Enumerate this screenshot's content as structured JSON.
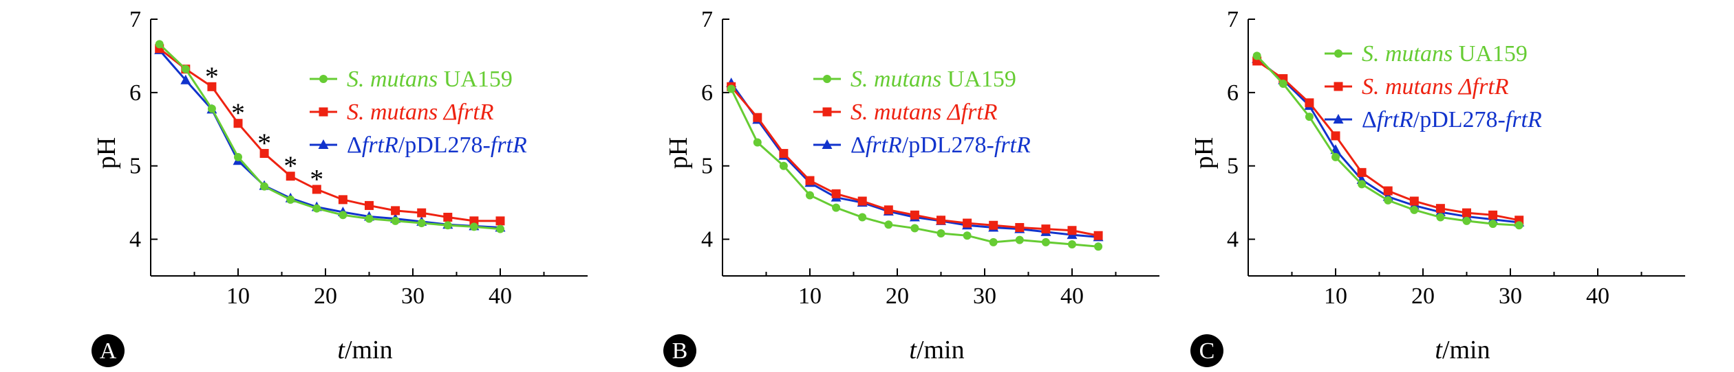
{
  "chart_data": [
    {
      "type": "line",
      "panel": "A",
      "xlabel_italic": "t",
      "xlabel_unit": "/min",
      "ylabel": "pH",
      "xlim": [
        0,
        50
      ],
      "ylim": [
        3.5,
        7
      ],
      "x_ticks": [
        "10",
        "20",
        "30",
        "40"
      ],
      "y_ticks": [
        "4",
        "5",
        "6",
        "7"
      ],
      "legend_position": "top-right",
      "series": [
        {
          "key": "ua159",
          "name_italic": "S. mutans",
          "name_rest": " UA159",
          "color": "#66cc33",
          "marker": "circle",
          "x": [
            1,
            4,
            7,
            10,
            13,
            16,
            19,
            22,
            25,
            28,
            31,
            34,
            37,
            40
          ],
          "y": [
            6.66,
            6.32,
            5.78,
            5.12,
            4.72,
            4.54,
            4.42,
            4.33,
            4.28,
            4.25,
            4.22,
            4.19,
            4.17,
            4.14
          ]
        },
        {
          "key": "frtr",
          "name_italic": "S. mutans ΔfrtR",
          "name_rest": "",
          "color": "#ee2211",
          "marker": "square",
          "x": [
            1,
            4,
            7,
            10,
            13,
            16,
            19,
            22,
            25,
            28,
            31,
            34,
            37,
            40
          ],
          "y": [
            6.6,
            6.32,
            6.08,
            5.58,
            5.17,
            4.86,
            4.68,
            4.54,
            4.46,
            4.39,
            4.36,
            4.3,
            4.25,
            4.25
          ]
        },
        {
          "key": "comp",
          "name_prefix": "Δ",
          "name_italic": "frtR",
          "name_mid": "/pDL278-",
          "name_italic2": "frtR",
          "color": "#1133cc",
          "marker": "triangle",
          "x": [
            1,
            4,
            7,
            10,
            13,
            16,
            19,
            22,
            25,
            28,
            31,
            34,
            37,
            40
          ],
          "y": [
            6.58,
            6.17,
            5.77,
            5.07,
            4.73,
            4.56,
            4.44,
            4.37,
            4.31,
            4.28,
            4.24,
            4.2,
            4.18,
            4.16
          ]
        }
      ],
      "annotations": [
        {
          "text": "*",
          "x": 7,
          "y": 6.3
        },
        {
          "text": "*",
          "x": 10,
          "y": 5.8
        },
        {
          "text": "*",
          "x": 13,
          "y": 5.39
        },
        {
          "text": "*",
          "x": 16,
          "y": 5.08
        },
        {
          "text": "*",
          "x": 19,
          "y": 4.9
        }
      ]
    },
    {
      "type": "line",
      "panel": "B",
      "xlabel_italic": "t",
      "xlabel_unit": "/min",
      "ylabel": "pH",
      "xlim": [
        0,
        50
      ],
      "ylim": [
        3.5,
        7
      ],
      "x_ticks": [
        "10",
        "20",
        "30",
        "40"
      ],
      "y_ticks": [
        "4",
        "5",
        "6",
        "7"
      ],
      "legend_position": "top-right",
      "series": [
        {
          "key": "ua159",
          "name_italic": "S. mutans",
          "name_rest": " UA159",
          "color": "#66cc33",
          "marker": "circle",
          "x": [
            1,
            4,
            7,
            10,
            13,
            16,
            19,
            22,
            25,
            28,
            31,
            34,
            37,
            40,
            43
          ],
          "y": [
            6.05,
            5.32,
            5.0,
            4.6,
            4.43,
            4.3,
            4.2,
            4.15,
            4.08,
            4.05,
            3.96,
            3.99,
            3.96,
            3.93,
            3.9
          ]
        },
        {
          "key": "frtr",
          "name_italic": "S. mutans ΔfrtR",
          "name_rest": "",
          "color": "#ee2211",
          "marker": "square",
          "x": [
            1,
            4,
            7,
            10,
            13,
            16,
            19,
            22,
            25,
            28,
            31,
            34,
            37,
            40,
            43
          ],
          "y": [
            6.08,
            5.66,
            5.17,
            4.8,
            4.62,
            4.52,
            4.4,
            4.33,
            4.26,
            4.22,
            4.19,
            4.16,
            4.14,
            4.12,
            4.05
          ]
        },
        {
          "key": "comp",
          "name_prefix": "Δ",
          "name_italic": "frtR",
          "name_mid": "/pDL278-",
          "name_italic2": "frtR",
          "color": "#1133cc",
          "marker": "triangle",
          "x": [
            1,
            4,
            7,
            10,
            13,
            16,
            19,
            22,
            25,
            28,
            31,
            34,
            37,
            40,
            43
          ],
          "y": [
            6.13,
            5.63,
            5.14,
            4.77,
            4.57,
            4.5,
            4.38,
            4.3,
            4.25,
            4.19,
            4.16,
            4.14,
            4.1,
            4.06,
            4.03
          ]
        }
      ],
      "annotations": []
    },
    {
      "type": "line",
      "panel": "C",
      "xlabel_italic": "t",
      "xlabel_unit": "/min",
      "ylabel": "pH",
      "xlim": [
        0,
        50
      ],
      "ylim": [
        3.5,
        7
      ],
      "x_ticks": [
        "10",
        "20",
        "30",
        "40"
      ],
      "y_ticks": [
        "4",
        "5",
        "6",
        "7"
      ],
      "legend_position": "top-right",
      "series": [
        {
          "key": "ua159",
          "name_italic": "S. mutans",
          "name_rest": " UA159",
          "color": "#66cc33",
          "marker": "circle",
          "x": [
            1,
            4,
            7,
            10,
            13,
            16,
            19,
            22,
            25,
            28,
            31
          ],
          "y": [
            6.5,
            6.12,
            5.67,
            5.12,
            4.75,
            4.53,
            4.4,
            4.3,
            4.25,
            4.21,
            4.19
          ]
        },
        {
          "key": "frtr",
          "name_italic": "S. mutans ΔfrtR",
          "name_rest": "",
          "color": "#ee2211",
          "marker": "square",
          "x": [
            1,
            4,
            7,
            10,
            13,
            16,
            19,
            22,
            25,
            28,
            31
          ],
          "y": [
            6.43,
            6.19,
            5.86,
            5.41,
            4.91,
            4.66,
            4.52,
            4.42,
            4.36,
            4.33,
            4.26
          ]
        },
        {
          "key": "comp",
          "name_prefix": "Δ",
          "name_italic": "frtR",
          "name_mid": "/pDL278-",
          "name_italic2": "frtR",
          "color": "#1133cc",
          "marker": "triangle",
          "x": [
            1,
            4,
            7,
            10,
            13,
            16,
            19,
            22,
            25,
            28,
            31
          ],
          "y": [
            6.46,
            6.17,
            5.82,
            5.22,
            4.81,
            4.58,
            4.46,
            4.37,
            4.31,
            4.27,
            4.23
          ]
        }
      ],
      "annotations": []
    }
  ]
}
